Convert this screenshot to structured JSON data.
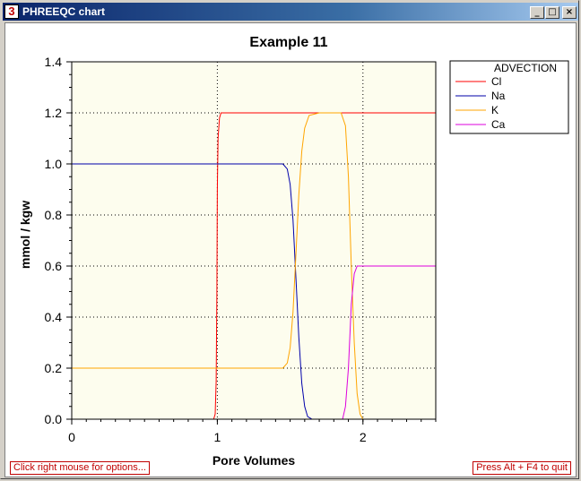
{
  "window": {
    "title": "PHREEQC chart",
    "icon_label": "3",
    "buttons": {
      "minimize": "_",
      "maximize": "□",
      "close": "×"
    }
  },
  "status": {
    "left_hint": "Click right mouse for options...",
    "right_hint": "Press Alt + F4 to quit"
  },
  "colors": {
    "Cl": "#ff0000",
    "Na": "#0000aa",
    "K": "#ffa500",
    "Ca": "#dd00dd",
    "plot_bg": "#fdfdee"
  },
  "chart_data": {
    "type": "line",
    "title": "Example 11",
    "xlabel": "Pore Volumes",
    "ylabel": "mmol / kgw",
    "xlim": [
      0,
      2.5
    ],
    "ylim": [
      0,
      1.4
    ],
    "xticks": [
      "0",
      "1",
      "2"
    ],
    "yticks": [
      "0.0",
      "0.2",
      "0.4",
      "0.6",
      "0.8",
      "1.0",
      "1.2",
      "1.4"
    ],
    "grid": "dotted at major ticks",
    "legend_title": "ADVECTION",
    "legend_position": "right",
    "series": [
      {
        "name": "Cl",
        "color": "#ff0000",
        "x": [
          0,
          0.975,
          0.985,
          0.992,
          0.997,
          1.0,
          1.005,
          1.015,
          1.025,
          2.5
        ],
        "y": [
          0,
          0,
          0.02,
          0.15,
          0.5,
          0.9,
          1.1,
          1.18,
          1.2,
          1.2
        ]
      },
      {
        "name": "Na",
        "color": "#0000aa",
        "x": [
          0,
          1.45,
          1.48,
          1.5,
          1.52,
          1.54,
          1.56,
          1.58,
          1.6,
          1.62,
          1.65,
          2.5
        ],
        "y": [
          1.0,
          1.0,
          0.98,
          0.92,
          0.78,
          0.55,
          0.32,
          0.14,
          0.05,
          0.01,
          0,
          0
        ]
      },
      {
        "name": "K",
        "color": "#ffa500",
        "x": [
          0,
          1.45,
          1.48,
          1.5,
          1.52,
          1.54,
          1.56,
          1.58,
          1.6,
          1.63,
          1.7,
          1.85,
          1.88,
          1.9,
          1.92,
          1.94,
          1.96,
          1.98,
          2.0
        ],
        "y": [
          0.2,
          0.2,
          0.22,
          0.28,
          0.42,
          0.65,
          0.88,
          1.05,
          1.14,
          1.19,
          1.2,
          1.2,
          1.15,
          0.95,
          0.6,
          0.3,
          0.1,
          0.02,
          0
        ]
      },
      {
        "name": "Ca",
        "color": "#dd00dd",
        "x": [
          0,
          1.86,
          1.88,
          1.9,
          1.92,
          1.94,
          1.96,
          1.98,
          2.0,
          2.5
        ],
        "y": [
          0,
          0,
          0.05,
          0.2,
          0.45,
          0.57,
          0.6,
          0.6,
          0.6,
          0.6
        ]
      }
    ]
  }
}
